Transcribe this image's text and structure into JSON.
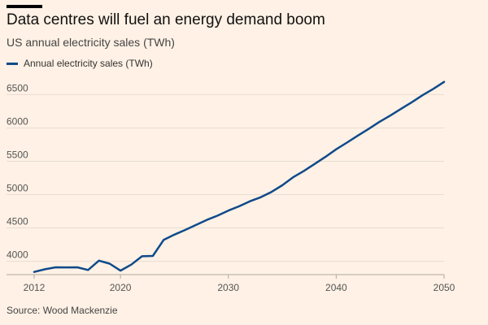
{
  "chart_data": {
    "type": "line",
    "title": "Data centres will fuel an energy demand boom",
    "subtitle": "US annual electricity sales (TWh)",
    "source": "Source: Wood Mackenzie",
    "xlabel": "",
    "ylabel": "",
    "xlim": [
      2012,
      2050
    ],
    "ylim": [
      3800,
      6700
    ],
    "xticks": [
      2012,
      2020,
      2030,
      2040,
      2050
    ],
    "yticks": [
      4000,
      4500,
      5000,
      5500,
      6000,
      6500
    ],
    "grid": true,
    "legend_position": "top-left",
    "series": [
      {
        "name": "Annual electricity sales (TWh)",
        "color": "#0F4A8A",
        "x": [
          2012,
          2013,
          2014,
          2015,
          2016,
          2017,
          2018,
          2019,
          2020,
          2021,
          2022,
          2023,
          2024,
          2025,
          2026,
          2027,
          2028,
          2029,
          2030,
          2031,
          2032,
          2033,
          2034,
          2035,
          2036,
          2037,
          2038,
          2039,
          2040,
          2041,
          2042,
          2043,
          2044,
          2045,
          2046,
          2047,
          2048,
          2049,
          2050
        ],
        "values": [
          3840,
          3880,
          3910,
          3908,
          3910,
          3870,
          4010,
          3965,
          3860,
          3950,
          4075,
          4080,
          4320,
          4400,
          4470,
          4545,
          4620,
          4685,
          4760,
          4825,
          4900,
          4960,
          5040,
          5140,
          5260,
          5355,
          5460,
          5565,
          5680,
          5780,
          5885,
          5985,
          6090,
          6185,
          6285,
          6385,
          6490,
          6585,
          6690
        ]
      }
    ]
  }
}
